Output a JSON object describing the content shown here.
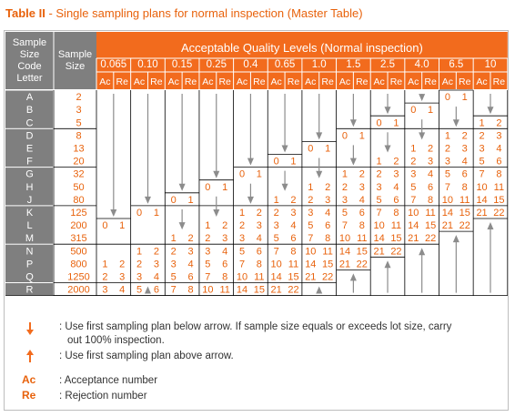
{
  "title": {
    "prefix": "Table II",
    "suffix": " - Single sampling plans for normal inspection (Master Table)"
  },
  "header": {
    "code_letter": [
      "Sample",
      "Size",
      "Code",
      "Letter"
    ],
    "sample_size": [
      "Sample",
      "Size"
    ],
    "aql_title": "Acceptable Quality Levels (Normal inspection)",
    "ac": "Ac",
    "re": "Re"
  },
  "aql_levels": [
    "0.065",
    "0.10",
    "0.15",
    "0.25",
    "0.4",
    "0.65",
    "1.0",
    "1.5",
    "2.5",
    "4.0",
    "6.5",
    "10"
  ],
  "rows": [
    {
      "letter": "A",
      "size": "2"
    },
    {
      "letter": "B",
      "size": "3"
    },
    {
      "letter": "C",
      "size": "5"
    },
    {
      "letter": "D",
      "size": "8"
    },
    {
      "letter": "E",
      "size": "13"
    },
    {
      "letter": "F",
      "size": "20"
    },
    {
      "letter": "G",
      "size": "32"
    },
    {
      "letter": "H",
      "size": "50"
    },
    {
      "letter": "J",
      "size": "80"
    },
    {
      "letter": "K",
      "size": "125"
    },
    {
      "letter": "L",
      "size": "200"
    },
    {
      "letter": "M",
      "size": "315"
    },
    {
      "letter": "N",
      "size": "500"
    },
    {
      "letter": "P",
      "size": "800"
    },
    {
      "letter": "Q",
      "size": "1250"
    },
    {
      "letter": "R",
      "size": "2000"
    }
  ],
  "cells": [
    {
      "row": 15,
      "col": 0,
      "ac": "3",
      "re": "4"
    },
    {
      "row": 10,
      "col": 0,
      "ac": "0",
      "re": "1"
    },
    {
      "row": 13,
      "col": 0,
      "ac": "1",
      "re": "2"
    },
    {
      "row": 14,
      "col": 0,
      "ac": "2",
      "re": "3"
    },
    {
      "row": 9,
      "col": 1,
      "ac": "0",
      "re": "1"
    },
    {
      "row": 12,
      "col": 1,
      "ac": "1",
      "re": "2"
    },
    {
      "row": 13,
      "col": 1,
      "ac": "2",
      "re": "3"
    },
    {
      "row": 14,
      "col": 1,
      "ac": "3",
      "re": "4"
    },
    {
      "row": 15,
      "col": 1,
      "ac": "5",
      "re": "6"
    },
    {
      "row": 8,
      "col": 2,
      "ac": "0",
      "re": "1"
    },
    {
      "row": 11,
      "col": 2,
      "ac": "1",
      "re": "2"
    },
    {
      "row": 12,
      "col": 2,
      "ac": "2",
      "re": "3"
    },
    {
      "row": 13,
      "col": 2,
      "ac": "3",
      "re": "4"
    },
    {
      "row": 14,
      "col": 2,
      "ac": "5",
      "re": "6"
    },
    {
      "row": 15,
      "col": 2,
      "ac": "7",
      "re": "8"
    },
    {
      "row": 7,
      "col": 3,
      "ac": "0",
      "re": "1"
    },
    {
      "row": 10,
      "col": 3,
      "ac": "1",
      "re": "2"
    },
    {
      "row": 11,
      "col": 3,
      "ac": "2",
      "re": "3"
    },
    {
      "row": 12,
      "col": 3,
      "ac": "3",
      "re": "4"
    },
    {
      "row": 13,
      "col": 3,
      "ac": "5",
      "re": "6"
    },
    {
      "row": 14,
      "col": 3,
      "ac": "7",
      "re": "8"
    },
    {
      "row": 15,
      "col": 3,
      "ac": "10",
      "re": "11"
    },
    {
      "row": 6,
      "col": 4,
      "ac": "0",
      "re": "1"
    },
    {
      "row": 9,
      "col": 4,
      "ac": "1",
      "re": "2"
    },
    {
      "row": 10,
      "col": 4,
      "ac": "2",
      "re": "3"
    },
    {
      "row": 11,
      "col": 4,
      "ac": "3",
      "re": "4"
    },
    {
      "row": 12,
      "col": 4,
      "ac": "5",
      "re": "6"
    },
    {
      "row": 13,
      "col": 4,
      "ac": "7",
      "re": "8"
    },
    {
      "row": 14,
      "col": 4,
      "ac": "10",
      "re": "11"
    },
    {
      "row": 15,
      "col": 4,
      "ac": "14",
      "re": "15"
    },
    {
      "row": 5,
      "col": 5,
      "ac": "0",
      "re": "1"
    },
    {
      "row": 8,
      "col": 5,
      "ac": "1",
      "re": "2"
    },
    {
      "row": 9,
      "col": 5,
      "ac": "2",
      "re": "3"
    },
    {
      "row": 10,
      "col": 5,
      "ac": "3",
      "re": "4"
    },
    {
      "row": 11,
      "col": 5,
      "ac": "5",
      "re": "6"
    },
    {
      "row": 12,
      "col": 5,
      "ac": "7",
      "re": "8"
    },
    {
      "row": 13,
      "col": 5,
      "ac": "10",
      "re": "11"
    },
    {
      "row": 14,
      "col": 5,
      "ac": "14",
      "re": "15"
    },
    {
      "row": 15,
      "col": 5,
      "ac": "21",
      "re": "22"
    },
    {
      "row": 4,
      "col": 6,
      "ac": "0",
      "re": "1"
    },
    {
      "row": 7,
      "col": 6,
      "ac": "1",
      "re": "2"
    },
    {
      "row": 8,
      "col": 6,
      "ac": "2",
      "re": "3"
    },
    {
      "row": 9,
      "col": 6,
      "ac": "3",
      "re": "4"
    },
    {
      "row": 10,
      "col": 6,
      "ac": "5",
      "re": "6"
    },
    {
      "row": 11,
      "col": 6,
      "ac": "7",
      "re": "8"
    },
    {
      "row": 12,
      "col": 6,
      "ac": "10",
      "re": "11"
    },
    {
      "row": 13,
      "col": 6,
      "ac": "14",
      "re": "15"
    },
    {
      "row": 14,
      "col": 6,
      "ac": "21",
      "re": "22"
    },
    {
      "row": 3,
      "col": 7,
      "ac": "0",
      "re": "1"
    },
    {
      "row": 6,
      "col": 7,
      "ac": "1",
      "re": "2"
    },
    {
      "row": 7,
      "col": 7,
      "ac": "2",
      "re": "3"
    },
    {
      "row": 8,
      "col": 7,
      "ac": "3",
      "re": "4"
    },
    {
      "row": 9,
      "col": 7,
      "ac": "5",
      "re": "6"
    },
    {
      "row": 10,
      "col": 7,
      "ac": "7",
      "re": "8"
    },
    {
      "row": 11,
      "col": 7,
      "ac": "10",
      "re": "11"
    },
    {
      "row": 12,
      "col": 7,
      "ac": "14",
      "re": "15"
    },
    {
      "row": 13,
      "col": 7,
      "ac": "21",
      "re": "22"
    },
    {
      "row": 2,
      "col": 8,
      "ac": "0",
      "re": "1"
    },
    {
      "row": 5,
      "col": 8,
      "ac": "1",
      "re": "2"
    },
    {
      "row": 6,
      "col": 8,
      "ac": "2",
      "re": "3"
    },
    {
      "row": 7,
      "col": 8,
      "ac": "3",
      "re": "4"
    },
    {
      "row": 8,
      "col": 8,
      "ac": "5",
      "re": "6"
    },
    {
      "row": 9,
      "col": 8,
      "ac": "7",
      "re": "8"
    },
    {
      "row": 10,
      "col": 8,
      "ac": "10",
      "re": "11"
    },
    {
      "row": 11,
      "col": 8,
      "ac": "14",
      "re": "15"
    },
    {
      "row": 12,
      "col": 8,
      "ac": "21",
      "re": "22"
    },
    {
      "row": 1,
      "col": 9,
      "ac": "0",
      "re": "1"
    },
    {
      "row": 4,
      "col": 9,
      "ac": "1",
      "re": "2"
    },
    {
      "row": 5,
      "col": 9,
      "ac": "2",
      "re": "3"
    },
    {
      "row": 6,
      "col": 9,
      "ac": "3",
      "re": "4"
    },
    {
      "row": 7,
      "col": 9,
      "ac": "5",
      "re": "6"
    },
    {
      "row": 8,
      "col": 9,
      "ac": "7",
      "re": "8"
    },
    {
      "row": 9,
      "col": 9,
      "ac": "10",
      "re": "11"
    },
    {
      "row": 10,
      "col": 9,
      "ac": "14",
      "re": "15"
    },
    {
      "row": 11,
      "col": 9,
      "ac": "21",
      "re": "22"
    },
    {
      "row": 0,
      "col": 10,
      "ac": "0",
      "re": "1"
    },
    {
      "row": 3,
      "col": 10,
      "ac": "1",
      "re": "2"
    },
    {
      "row": 4,
      "col": 10,
      "ac": "2",
      "re": "3"
    },
    {
      "row": 5,
      "col": 10,
      "ac": "3",
      "re": "4"
    },
    {
      "row": 6,
      "col": 10,
      "ac": "5",
      "re": "6"
    },
    {
      "row": 7,
      "col": 10,
      "ac": "7",
      "re": "8"
    },
    {
      "row": 8,
      "col": 10,
      "ac": "10",
      "re": "11"
    },
    {
      "row": 9,
      "col": 10,
      "ac": "14",
      "re": "15"
    },
    {
      "row": 10,
      "col": 10,
      "ac": "21",
      "re": "22"
    },
    {
      "row": 2,
      "col": 11,
      "ac": "1",
      "re": "2"
    },
    {
      "row": 3,
      "col": 11,
      "ac": "2",
      "re": "3"
    },
    {
      "row": 4,
      "col": 11,
      "ac": "3",
      "re": "4"
    },
    {
      "row": 5,
      "col": 11,
      "ac": "5",
      "re": "6"
    },
    {
      "row": 6,
      "col": 11,
      "ac": "7",
      "re": "8"
    },
    {
      "row": 7,
      "col": 11,
      "ac": "10",
      "re": "11"
    },
    {
      "row": 8,
      "col": 11,
      "ac": "14",
      "re": "15"
    },
    {
      "row": 9,
      "col": 11,
      "ac": "21",
      "re": "22"
    }
  ],
  "arrows": [
    {
      "col": 0,
      "dir": "down",
      "from": 0,
      "to": 10
    },
    {
      "col": 1,
      "dir": "down",
      "from": 0,
      "to": 9
    },
    {
      "col": 2,
      "dir": "down",
      "from": 0,
      "to": 8
    },
    {
      "col": 3,
      "dir": "down",
      "from": 0,
      "to": 7
    },
    {
      "col": 4,
      "dir": "down",
      "from": 0,
      "to": 6
    },
    {
      "col": 5,
      "dir": "down",
      "from": 0,
      "to": 5
    },
    {
      "col": 6,
      "dir": "down",
      "from": 0,
      "to": 4
    },
    {
      "col": 7,
      "dir": "down",
      "from": 0,
      "to": 3
    },
    {
      "col": 8,
      "dir": "down",
      "from": 0,
      "to": 2
    },
    {
      "col": 9,
      "dir": "down",
      "from": 0,
      "to": 1
    },
    {
      "col": 11,
      "dir": "down",
      "from": 0,
      "to": 2
    },
    {
      "col": 1,
      "dir": "up",
      "from": 16,
      "to": 15
    },
    {
      "col": 2,
      "dir": "down",
      "from": 9,
      "to": 11
    },
    {
      "col": 3,
      "dir": "down",
      "from": 8,
      "to": 10
    },
    {
      "col": 4,
      "dir": "down",
      "from": 7,
      "to": 9
    },
    {
      "col": 5,
      "dir": "down",
      "from": 6,
      "to": 8
    },
    {
      "col": 6,
      "dir": "down",
      "from": 5,
      "to": 7
    },
    {
      "col": 7,
      "dir": "down",
      "from": 4,
      "to": 6
    },
    {
      "col": 8,
      "dir": "down",
      "from": 3,
      "to": 5
    },
    {
      "col": 9,
      "dir": "down",
      "from": 2,
      "to": 4
    },
    {
      "col": 10,
      "dir": "down",
      "from": 1,
      "to": 3
    },
    {
      "col": 6,
      "dir": "up",
      "from": 16,
      "to": 15
    },
    {
      "col": 7,
      "dir": "up",
      "from": 16,
      "to": 14
    },
    {
      "col": 8,
      "dir": "up",
      "from": 16,
      "to": 13
    },
    {
      "col": 9,
      "dir": "up",
      "from": 16,
      "to": 12
    },
    {
      "col": 10,
      "dir": "up",
      "from": 16,
      "to": 11
    },
    {
      "col": 11,
      "dir": "up",
      "from": 16,
      "to": 10
    }
  ],
  "legend": {
    "down_text": ": Use first sampling plan below arrow. If sample size equals or exceeds lot size, carry",
    "down_text2": "out 100% inspection.",
    "up_text": ": Use first sampling plan above arrow.",
    "ac_key": "Ac",
    "ac_text": ": Acceptance number",
    "re_key": "Re",
    "re_text": ": Rejection number"
  },
  "colors": {
    "orange": "#f26b1d",
    "gray": "#7f7f7f",
    "text": "#e8620c",
    "grid": "#000000",
    "arrow": "#8c8c8c"
  }
}
